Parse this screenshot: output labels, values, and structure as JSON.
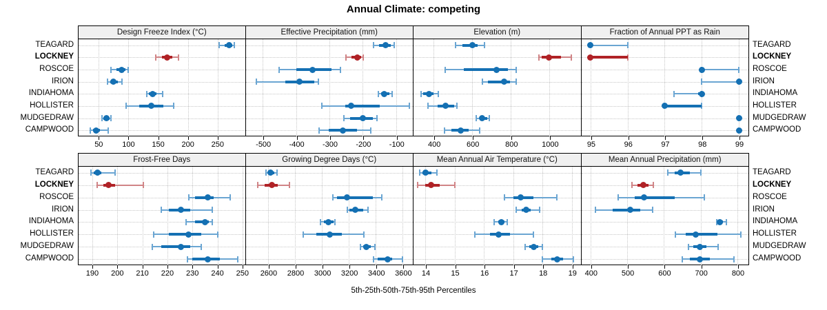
{
  "title": "Annual Climate: competing",
  "footer": "5th-25th-50th-75th-95th Percentiles",
  "stations": [
    "TEAGARD",
    "LOCKNEY",
    "ROSCOE",
    "IRION",
    "INDIAHOMA",
    "HOLLISTER",
    "MUDGEDRAW",
    "CAMPWOOD"
  ],
  "highlight_station": "LOCKNEY",
  "percentile_labels": [
    "5th",
    "25th",
    "50th",
    "75th",
    "95th"
  ],
  "colors": {
    "series_normal": "#1470b3",
    "series_normal_light": "#6aa5d2",
    "series_highlight": "#b02226",
    "series_highlight_light": "#d08486",
    "header_bg": "#f0f0f0",
    "grid": "#c6c6c6",
    "border": "#000000",
    "text": "#000000"
  },
  "chart_data": {
    "type": "dotplot-percentiles",
    "orientation": "horizontal",
    "grid": "dotted",
    "note": "Each bar = 5th/25th/50th/75th/95th percentiles; thick segment = 25th-75th, dot = median",
    "panels": [
      {
        "title": "Design Freeze Index (°C)",
        "grid_row": "top",
        "range": [
          16,
          296
        ],
        "ticks": [
          50,
          100,
          150,
          200,
          250
        ],
        "tick_labels": [
          "50",
          "100",
          "150",
          "200",
          "250"
        ],
        "values": {
          "TEAGARD": [
            252,
            262,
            269,
            274,
            278
          ],
          "LOCKNEY": [
            146,
            156,
            165,
            174,
            184
          ],
          "ROSCOE": [
            70,
            80,
            89,
            95,
            99
          ],
          "IRION": [
            65,
            69,
            75,
            82,
            89
          ],
          "INDIAHOMA": [
            131,
            134,
            141,
            147,
            158
          ],
          "HOLLISTER": [
            96,
            118,
            138,
            159,
            176
          ],
          "MUDGEDRAW": [
            55,
            58,
            63,
            68,
            71
          ],
          "CAMPWOOD": [
            36,
            40,
            45,
            52,
            66
          ]
        }
      },
      {
        "title": "Effective Precipitation (mm)",
        "grid_row": "top",
        "range": [
          -551,
          -50
        ],
        "ticks": [
          -500,
          -400,
          -300,
          -200,
          -100
        ],
        "tick_labels": [
          "-500",
          "-400",
          "-300",
          "-200",
          "-100"
        ],
        "values": {
          "TEAGARD": [
            -168,
            -151,
            -131,
            -116,
            -105
          ],
          "LOCKNEY": [
            -250,
            -234,
            -217,
            -205,
            -198
          ],
          "ROSCOE": [
            -450,
            -400,
            -350,
            -294,
            -266
          ],
          "IRION": [
            -519,
            -433,
            -390,
            -346,
            -333
          ],
          "INDIAHOMA": [
            -153,
            -146,
            -135,
            -121,
            -112
          ],
          "HOLLISTER": [
            -322,
            -252,
            -235,
            -150,
            -60
          ],
          "MUDGEDRAW": [
            -257,
            -237,
            -199,
            -170,
            -158
          ],
          "CAMPWOOD": [
            -331,
            -303,
            -260,
            -218,
            -175
          ]
        }
      },
      {
        "title": "Elevation (m)",
        "grid_row": "top",
        "range": [
          296,
          1161
        ],
        "ticks": [
          400,
          600,
          800,
          1000
        ],
        "tick_labels": [
          "400",
          "600",
          "800",
          "1000"
        ],
        "values": {
          "TEAGARD": [
            512,
            551,
            602,
            629,
            665
          ],
          "LOCKNEY": [
            946,
            958,
            997,
            1060,
            1113
          ],
          "ROSCOE": [
            459,
            557,
            727,
            784,
            826
          ],
          "IRION": [
            652,
            683,
            764,
            796,
            826
          ],
          "INDIAHOMA": [
            335,
            347,
            377,
            401,
            423
          ],
          "HOLLISTER": [
            371,
            420,
            462,
            505,
            519
          ],
          "MUDGEDRAW": [
            622,
            638,
            652,
            678,
            688
          ],
          "CAMPWOOD": [
            458,
            491,
            542,
            581,
            640
          ]
        }
      },
      {
        "title": "Fraction of Annual PPT as Rain",
        "grid_row": "top",
        "range": [
          94.75,
          99.26
        ],
        "ticks": [
          95,
          96,
          97,
          98,
          99
        ],
        "tick_labels": [
          "95",
          "96",
          "97",
          "98",
          "99"
        ],
        "values": {
          "TEAGARD": [
            95,
            95,
            95,
            95,
            96
          ],
          "LOCKNEY": [
            95,
            95,
            95,
            96,
            96
          ],
          "ROSCOE": [
            98,
            98,
            98,
            98,
            99
          ],
          "IRION": [
            98,
            99,
            99,
            99,
            99
          ],
          "INDIAHOMA": [
            97.25,
            97.9,
            98,
            98,
            98
          ],
          "HOLLISTER": [
            97,
            97,
            97,
            98,
            98
          ],
          "MUDGEDRAW": [
            99,
            99,
            99,
            99,
            99
          ],
          "CAMPWOOD": [
            99,
            99,
            99,
            99,
            99
          ]
        }
      },
      {
        "title": "Frost-Free Days",
        "grid_row": "bottom",
        "range": [
          184.5,
          251
        ],
        "ticks": [
          190,
          200,
          210,
          220,
          230,
          240,
          250
        ],
        "tick_labels": [
          "190",
          "200",
          "210",
          "220",
          "230",
          "240",
          "250"
        ],
        "values": {
          "TEAGARD": [
            189.5,
            190.5,
            192,
            193.5,
            199
          ],
          "LOCKNEY": [
            192,
            194.5,
            196.5,
            199,
            210.5
          ],
          "ROSCOE": [
            228.5,
            231,
            236,
            238.5,
            245
          ],
          "IRION": [
            217.5,
            220.5,
            225.5,
            229,
            238
          ],
          "INDIAHOMA": [
            227.5,
            231,
            235,
            236.5,
            238
          ],
          "HOLLISTER": [
            214.5,
            220.5,
            228.5,
            233.5,
            240
          ],
          "MUDGEDRAW": [
            214,
            217.5,
            225.5,
            229,
            233.5
          ],
          "CAMPWOOD": [
            228,
            230,
            236,
            241,
            248
          ]
        }
      },
      {
        "title": "Growing Degree Days (°C)",
        "grid_row": "bottom",
        "range": [
          2434,
          3675
        ],
        "ticks": [
          2600,
          2800,
          3000,
          3200,
          3400,
          3600
        ],
        "tick_labels": [
          "2600",
          "2800",
          "3000",
          "3200",
          "3400",
          "3600"
        ],
        "values": {
          "TEAGARD": [
            2585,
            2605,
            2620,
            2645,
            2668
          ],
          "LOCKNEY": [
            2525,
            2575,
            2627,
            2673,
            2757
          ],
          "ROSCOE": [
            3080,
            3110,
            3185,
            3380,
            3445
          ],
          "IRION": [
            3190,
            3205,
            3248,
            3305,
            3340
          ],
          "INDIAHOMA": [
            2990,
            3015,
            3050,
            3085,
            3097
          ],
          "HOLLISTER": [
            2862,
            2960,
            3060,
            3150,
            3310
          ],
          "MUDGEDRAW": [
            3285,
            3305,
            3332,
            3363,
            3396
          ],
          "CAMPWOOD": [
            3385,
            3413,
            3486,
            3524,
            3600
          ]
        }
      },
      {
        "title": "Mean Annual Air Temperature (°C)",
        "grid_row": "bottom",
        "range": [
          13.6,
          19.3
        ],
        "ticks": [
          14,
          15,
          16,
          17,
          18,
          19
        ],
        "tick_labels": [
          "14",
          "15",
          "16",
          "17",
          "18",
          "19"
        ],
        "values": {
          "TEAGARD": [
            13.8,
            13.9,
            14.0,
            14.2,
            14.4
          ],
          "LOCKNEY": [
            13.75,
            14.0,
            14.2,
            14.5,
            15.0
          ],
          "ROSCOE": [
            16.7,
            17.0,
            17.25,
            17.7,
            18.5
          ],
          "IRION": [
            17.1,
            17.3,
            17.45,
            17.6,
            17.9
          ],
          "INDIAHOMA": [
            16.35,
            16.5,
            16.6,
            16.7,
            16.8
          ],
          "HOLLISTER": [
            15.7,
            16.2,
            16.5,
            16.9,
            17.7
          ],
          "MUDGEDRAW": [
            17.4,
            17.55,
            17.7,
            17.85,
            18.0
          ],
          "CAMPWOOD": [
            18.0,
            18.3,
            18.5,
            18.7,
            19.05
          ]
        }
      },
      {
        "title": "Mean Annual Precipitation (mm)",
        "grid_row": "bottom",
        "range": [
          375,
          830
        ],
        "ticks": [
          400,
          500,
          600,
          700,
          800
        ],
        "tick_labels": [
          "400",
          "500",
          "600",
          "700",
          "800"
        ],
        "values": {
          "TEAGARD": [
            610,
            630,
            645,
            670,
            700
          ],
          "LOCKNEY": [
            513,
            528,
            543,
            558,
            572
          ],
          "ROSCOE": [
            475,
            520,
            545,
            630,
            710
          ],
          "IRION": [
            413,
            460,
            508,
            535,
            570
          ],
          "INDIAHOMA": [
            743,
            748,
            753,
            760,
            770
          ],
          "HOLLISTER": [
            632,
            660,
            687,
            745,
            810
          ],
          "MUDGEDRAW": [
            667,
            680,
            697,
            715,
            748
          ],
          "CAMPWOOD": [
            650,
            670,
            698,
            725,
            790
          ]
        }
      }
    ]
  }
}
